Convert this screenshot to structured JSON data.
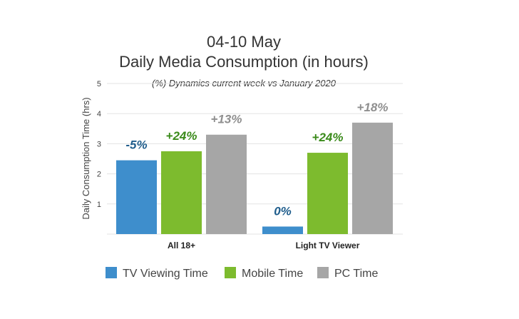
{
  "chart_data": {
    "type": "bar",
    "title": "04-10 May",
    "subtitle": "Daily Media Consumption (in hours)",
    "annotation": "(%) Dynamics current week  vs January 2020",
    "ylabel": "Daily Consumption Time (hrs)",
    "xlabel": "",
    "ylim": [
      0,
      5
    ],
    "yticks": [
      "1",
      "2",
      "3",
      "4",
      "5"
    ],
    "grid": true,
    "legend_position": "bottom",
    "categories": [
      "All 18+",
      "Light TV Viewer"
    ],
    "series": [
      {
        "name": "TV Viewing Time",
        "color": "#3e8ecc",
        "label_color": "#1f5d8c",
        "values": [
          2.45,
          0.25
        ],
        "labels": [
          "-5%",
          "0%"
        ]
      },
      {
        "name": "Mobile Time",
        "color": "#7dbb2e",
        "label_color": "#3a8a1a",
        "values": [
          2.75,
          2.7
        ],
        "labels": [
          "+24%",
          "+24%"
        ]
      },
      {
        "name": "PC Time",
        "color": "#a6a6a6",
        "label_color": "#8f8f8f",
        "values": [
          3.3,
          3.7
        ],
        "labels": [
          "+13%",
          "+18%"
        ]
      }
    ]
  }
}
